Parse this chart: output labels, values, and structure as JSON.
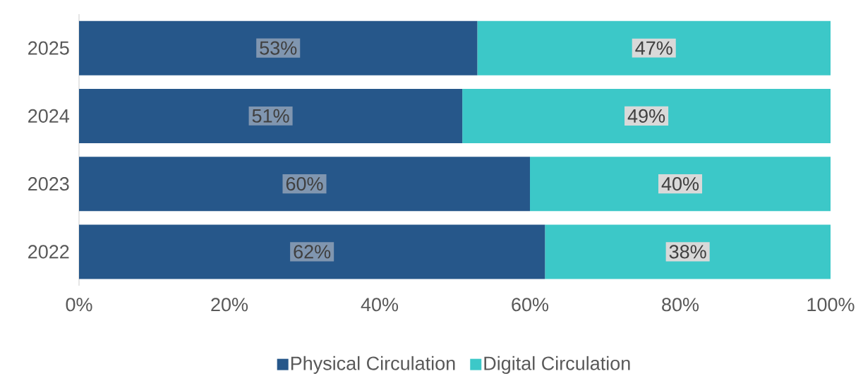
{
  "chart_data": {
    "type": "bar",
    "orientation": "horizontal",
    "stacked": true,
    "categories": [
      "2025",
      "2024",
      "2023",
      "2022"
    ],
    "series": [
      {
        "name": "Physical Circulation",
        "color": "#26578a",
        "values": [
          53,
          51,
          60,
          62
        ],
        "value_labels": [
          "53%",
          "51%",
          "60%",
          "62%"
        ]
      },
      {
        "name": "Digital Circulation",
        "color": "#3cc8c8",
        "values": [
          47,
          49,
          40,
          38
        ],
        "value_labels": [
          "47%",
          "49%",
          "40%",
          "38%"
        ]
      }
    ],
    "xlim": [
      0,
      100
    ],
    "xticks": [
      {
        "value": 0,
        "label": "0%"
      },
      {
        "value": 20,
        "label": "20%"
      },
      {
        "value": 40,
        "label": "40%"
      },
      {
        "value": 60,
        "label": "60%"
      },
      {
        "value": 80,
        "label": "80%"
      },
      {
        "value": 100,
        "label": "100%"
      }
    ],
    "legend": "bottom"
  }
}
